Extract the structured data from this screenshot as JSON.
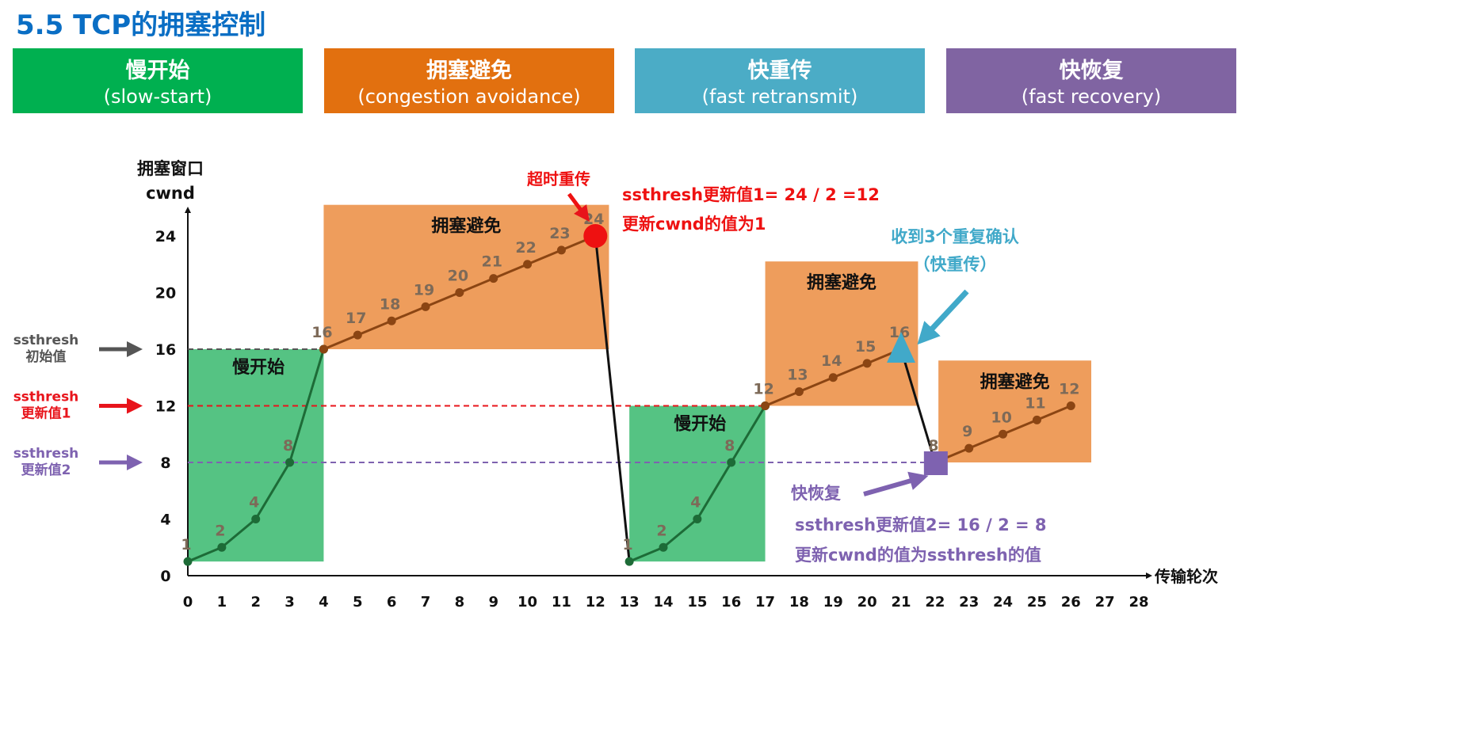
{
  "title": "5.5 TCP的拥塞控制",
  "banners": [
    {
      "zh": "慢开始",
      "en": "(slow-start)",
      "color": "#00b050"
    },
    {
      "zh": "拥塞避免",
      "en": "(congestion avoidance)",
      "color": "#e2700f"
    },
    {
      "zh": "快重传",
      "en": "(fast retransmit)",
      "color": "#4bacc6"
    },
    {
      "zh": "快恢复",
      "en": "(fast recovery)",
      "color": "#8064a2"
    }
  ],
  "chart_data": {
    "type": "line",
    "ylabel_line1": "拥塞窗口",
    "ylabel_line2": "cwnd",
    "xlabel": "传输轮次",
    "xlim": [
      0,
      28
    ],
    "ylim": [
      0,
      24
    ],
    "xticks": [
      "0",
      "1",
      "2",
      "3",
      "4",
      "5",
      "6",
      "7",
      "8",
      "9",
      "10",
      "11",
      "12",
      "13",
      "14",
      "15",
      "16",
      "17",
      "18",
      "19",
      "20",
      "21",
      "22",
      "23",
      "24",
      "25",
      "26",
      "27",
      "28"
    ],
    "yticks": [
      "0",
      "4",
      "8",
      "12",
      "16",
      "20",
      "24"
    ],
    "grid": false,
    "segments": [
      {
        "phase": "slow-start",
        "x": [
          0,
          1,
          2,
          3,
          4
        ],
        "y": [
          1,
          2,
          4,
          8,
          16
        ],
        "color": "#1d6b37"
      },
      {
        "phase": "congestion-avoidance",
        "x": [
          4,
          5,
          6,
          7,
          8,
          9,
          10,
          11,
          12
        ],
        "y": [
          16,
          17,
          18,
          19,
          20,
          21,
          22,
          23,
          24
        ],
        "color": "#8b4513"
      },
      {
        "phase": "timeout-drop",
        "x": [
          12,
          13
        ],
        "y": [
          24,
          1
        ],
        "color": "#111111"
      },
      {
        "phase": "slow-start",
        "x": [
          13,
          14,
          15,
          16,
          17
        ],
        "y": [
          1,
          2,
          4,
          8,
          12
        ],
        "color": "#1d6b37"
      },
      {
        "phase": "congestion-avoidance",
        "x": [
          17,
          18,
          19,
          20,
          21
        ],
        "y": [
          12,
          13,
          14,
          15,
          16
        ],
        "color": "#8b4513"
      },
      {
        "phase": "fast-recovery-drop",
        "x": [
          21,
          22
        ],
        "y": [
          16,
          8
        ],
        "color": "#111111"
      },
      {
        "phase": "congestion-avoidance",
        "x": [
          22,
          23,
          24,
          25,
          26
        ],
        "y": [
          8,
          9,
          10,
          11,
          12
        ],
        "color": "#8b4513"
      }
    ],
    "point_labels": [
      {
        "x": 0,
        "y": 1,
        "t": "1"
      },
      {
        "x": 1,
        "y": 2,
        "t": "2"
      },
      {
        "x": 2,
        "y": 4,
        "t": "4"
      },
      {
        "x": 3,
        "y": 8,
        "t": "8"
      },
      {
        "x": 4,
        "y": 16,
        "t": "16"
      },
      {
        "x": 5,
        "y": 17,
        "t": "17"
      },
      {
        "x": 6,
        "y": 18,
        "t": "18"
      },
      {
        "x": 7,
        "y": 19,
        "t": "19"
      },
      {
        "x": 8,
        "y": 20,
        "t": "20"
      },
      {
        "x": 9,
        "y": 21,
        "t": "21"
      },
      {
        "x": 10,
        "y": 22,
        "t": "22"
      },
      {
        "x": 11,
        "y": 23,
        "t": "23"
      },
      {
        "x": 12,
        "y": 24,
        "t": "24"
      },
      {
        "x": 13,
        "y": 1,
        "t": "1"
      },
      {
        "x": 14,
        "y": 2,
        "t": "2"
      },
      {
        "x": 15,
        "y": 4,
        "t": "4"
      },
      {
        "x": 16,
        "y": 8,
        "t": "8"
      },
      {
        "x": 17,
        "y": 12,
        "t": "12"
      },
      {
        "x": 18,
        "y": 13,
        "t": "13"
      },
      {
        "x": 19,
        "y": 14,
        "t": "14"
      },
      {
        "x": 20,
        "y": 15,
        "t": "15"
      },
      {
        "x": 21,
        "y": 16,
        "t": "16"
      },
      {
        "x": 22,
        "y": 8,
        "t": "8"
      },
      {
        "x": 23,
        "y": 9,
        "t": "9"
      },
      {
        "x": 24,
        "y": 10,
        "t": "10"
      },
      {
        "x": 25,
        "y": 11,
        "t": "11"
      },
      {
        "x": 26,
        "y": 12,
        "t": "12"
      }
    ],
    "phase_regions": [
      {
        "label": "慢开始",
        "x": [
          0,
          4
        ],
        "y": [
          1,
          16
        ],
        "color": "#55c383"
      },
      {
        "label": "拥塞避免",
        "x": [
          4,
          12.4
        ],
        "y": [
          16,
          26.2
        ],
        "color": "#ee9d5c"
      },
      {
        "label": "慢开始",
        "x": [
          13,
          17
        ],
        "y": [
          1,
          12
        ],
        "color": "#55c383"
      },
      {
        "label": "拥塞避免",
        "x": [
          17,
          21.5
        ],
        "y": [
          12,
          22.2
        ],
        "color": "#ee9d5c"
      },
      {
        "label": "拥塞避免",
        "x": [
          22.1,
          26.6
        ],
        "y": [
          8,
          15.2
        ],
        "color": "#ee9d5c"
      }
    ],
    "ssthresh_lines": [
      {
        "label1": "ssthresh",
        "label2": "初始值",
        "value": 16,
        "until_x": 4,
        "color": "#555555"
      },
      {
        "label1": "ssthresh",
        "label2": "更新值1",
        "value": 12,
        "until_x": 17,
        "color": "#e8141b"
      },
      {
        "label1": "ssthresh",
        "label2": "更新值2",
        "value": 8,
        "until_x": 22,
        "color": "#7e62b0"
      }
    ],
    "events": [
      {
        "marker": "circle",
        "x": 12,
        "y": 24,
        "color": "#ee1111",
        "label": "超时重传",
        "notes": [
          "ssthresh更新值1= 24 / 2 =12",
          "更新cwnd的值为1"
        ]
      },
      {
        "marker": "triangle",
        "x": 21,
        "y": 16,
        "color": "#41a9c9",
        "label": "收到3个重复确认",
        "label2": "（快重传）"
      },
      {
        "marker": "square",
        "x": 22,
        "y": 8,
        "color": "#7e62b0",
        "label": "快恢复",
        "notes": [
          "ssthresh更新值2= 16 / 2 = 8",
          "更新cwnd的值为ssthresh的值"
        ]
      }
    ]
  }
}
